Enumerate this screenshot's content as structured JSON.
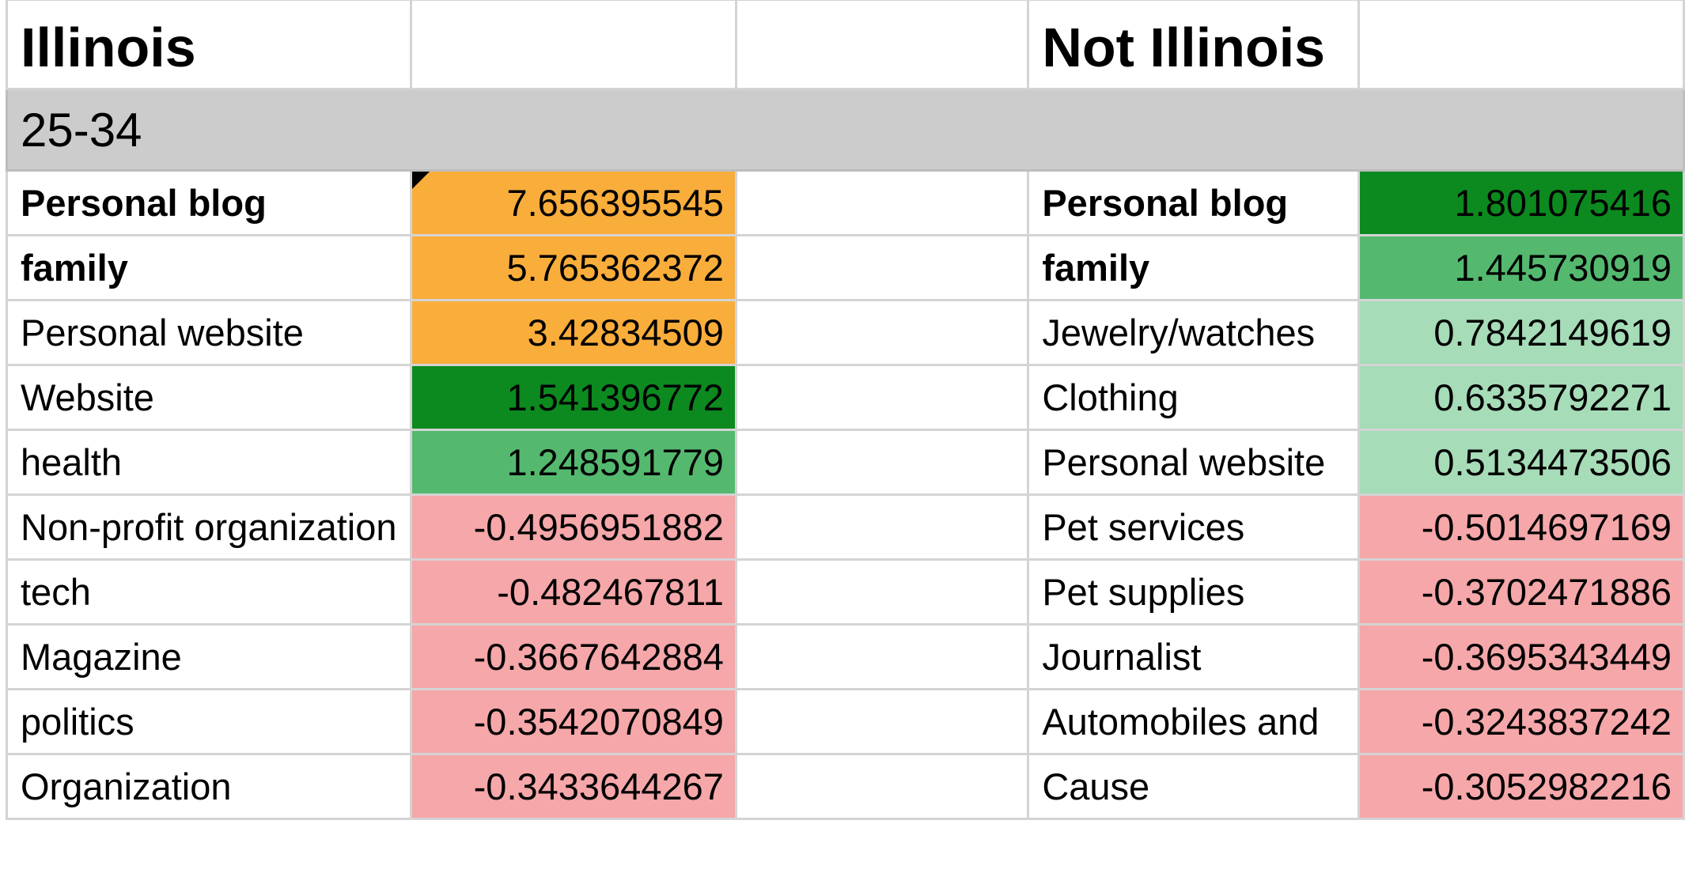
{
  "headers": {
    "left_title": "Illinois",
    "right_title": "Not Illinois"
  },
  "age_group": "25-34",
  "rows": [
    {
      "left_label": "Personal blog",
      "left_bold": true,
      "left_value": "7.656395545",
      "left_color": "#f9ad3b",
      "right_label": "Personal blog",
      "right_bold": true,
      "right_value": "1.801075416",
      "right_color": "#0c8a1f"
    },
    {
      "left_label": "family",
      "left_bold": true,
      "left_value": "5.765362372",
      "left_color": "#f9ad3b",
      "right_label": "family",
      "right_bold": true,
      "right_value": "1.445730919",
      "right_color": "#54b96f"
    },
    {
      "left_label": "Personal website",
      "left_bold": false,
      "left_value": "3.42834509",
      "left_color": "#f9ad3b",
      "right_label": "Jewelry/watches",
      "right_bold": false,
      "right_value": "0.7842149619",
      "right_color": "#a6dcb8"
    },
    {
      "left_label": "Website",
      "left_bold": false,
      "left_value": "1.541396772",
      "left_color": "#0c8a1f",
      "right_label": "Clothing",
      "right_bold": false,
      "right_value": "0.6335792271",
      "right_color": "#a6dcb8"
    },
    {
      "left_label": "health",
      "left_bold": false,
      "left_value": "1.248591779",
      "left_color": "#54b96f",
      "right_label": "Personal website",
      "right_bold": false,
      "right_value": "0.5134473506",
      "right_color": "#a6dcb8"
    },
    {
      "left_label": "Non-profit organization",
      "left_bold": false,
      "left_value": "-0.4956951882",
      "left_color": "#f5a7a9",
      "right_label": "Pet services",
      "right_bold": false,
      "right_value": "-0.5014697169",
      "right_color": "#f5a7a9"
    },
    {
      "left_label": "tech",
      "left_bold": false,
      "left_value": "-0.482467811",
      "left_color": "#f5a7a9",
      "right_label": "Pet supplies",
      "right_bold": false,
      "right_value": "-0.3702471886",
      "right_color": "#f5a7a9"
    },
    {
      "left_label": "Magazine",
      "left_bold": false,
      "left_value": "-0.3667642884",
      "left_color": "#f5a7a9",
      "right_label": "Journalist",
      "right_bold": false,
      "right_value": "-0.3695343449",
      "right_color": "#f5a7a9"
    },
    {
      "left_label": "politics",
      "left_bold": false,
      "left_value": "-0.3542070849",
      "left_color": "#f5a7a9",
      "right_label": "Automobiles and",
      "right_bold": false,
      "right_value": "-0.3243837242",
      "right_color": "#f5a7a9"
    },
    {
      "left_label": "Organization",
      "left_bold": false,
      "left_value": "-0.3433644267",
      "left_color": "#f5a7a9",
      "right_label": "Cause",
      "right_bold": false,
      "right_value": "-0.3052982216",
      "right_color": "#f5a7a9"
    }
  ]
}
